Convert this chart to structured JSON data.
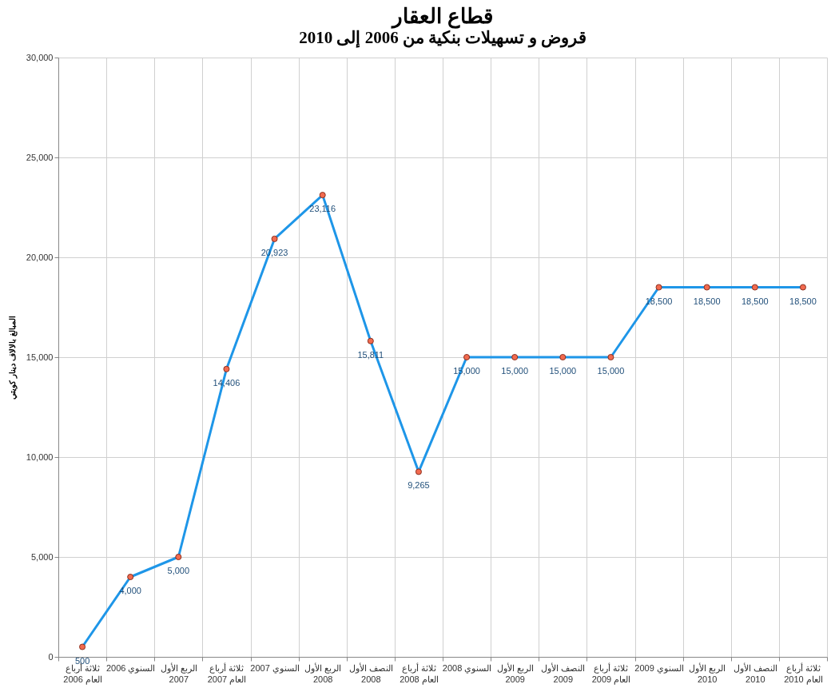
{
  "chart_data": {
    "type": "line",
    "title": "قطاع العقار",
    "subtitle": "قروض و تسهيلات بنكية من 2006 إلى 2010",
    "ylabel": "المبالغ بالالاف دينار كويتي",
    "categories": [
      "ثلاثة أرباع العام 2006",
      "السنوي 2006",
      "الربع الأول 2007",
      "ثلاثة أرباع العام 2007",
      "السنوي 2007",
      "الربع الأول 2008",
      "النصف الأول 2008",
      "ثلاثة أرباع العام 2008",
      "السنوي 2008",
      "الربع الأول 2009",
      "النصف الأول 2009",
      "ثلاثة أرباع العام 2009",
      "السنوي 2009",
      "الربع الأول 2010",
      "النصف الأول 2010",
      "ثلاثة أرباع العام 2010"
    ],
    "series": [
      {
        "color": "#1e96e8",
        "values": [
          500,
          4000,
          5000,
          14406,
          20923,
          23116,
          15811,
          9265,
          15000,
          15000,
          15000,
          15000,
          18500,
          18500,
          18500,
          18500
        ],
        "value_labels": [
          "500",
          "4,000",
          "5,000",
          "14,406",
          "20,923",
          "23,116",
          "15,811",
          "9,265",
          "15,000",
          "15,000",
          "15,000",
          "15,000",
          "18,500",
          "18,500",
          "18,500",
          "18,500"
        ]
      }
    ],
    "ylim": [
      0,
      30000
    ],
    "yticks": [
      0,
      {
        "value": 5000,
        "label": "5,000"
      },
      {
        "value": 10000,
        "label": "10,000"
      },
      {
        "value": 15000,
        "label": "15,000"
      },
      {
        "value": 20000,
        "label": "20,000"
      },
      {
        "value": 25000,
        "label": "25,000"
      },
      {
        "value": 30000,
        "label": "30,000"
      }
    ],
    "grid": true,
    "marker": "circle",
    "line_style": "solid"
  }
}
